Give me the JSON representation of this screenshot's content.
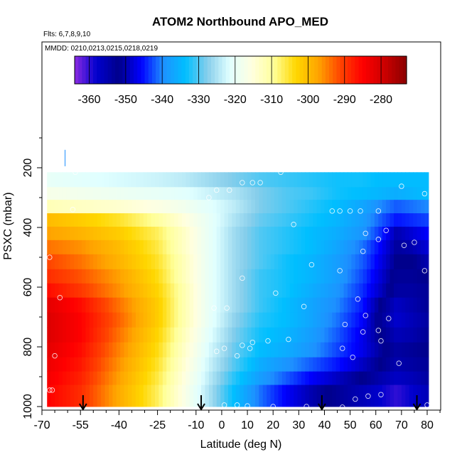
{
  "chart_data": {
    "type": "heatmap",
    "title": "ATOM2 Northbound APO_MED",
    "subtitle_flights": "Flts: 6,7,8,9,10",
    "subtitle_dates": "MMDD: 0210,0213,0215,0218,0219",
    "xlabel": "Latitude (deg N)",
    "ylabel": "PSXC (mbar)",
    "xlim": [
      -70,
      85
    ],
    "ylim": [
      1000,
      45
    ],
    "x_ticks": [
      -70,
      -55,
      -40,
      -25,
      -10,
      0,
      10,
      20,
      30,
      40,
      50,
      60,
      70,
      80
    ],
    "y_ticks": [
      200,
      400,
      600,
      800,
      1000
    ],
    "colorbar": {
      "ticks": [
        -360,
        -350,
        -340,
        -330,
        -320,
        -310,
        -300,
        -290,
        -280
      ],
      "range": [
        -364,
        -273
      ],
      "colors": [
        "#8a2be2",
        "#0000cd",
        "#00008b",
        "#0000ff",
        "#1e90ff",
        "#00bfff",
        "#87ceeb",
        "#e0ffff",
        "#ffffe0",
        "#ffff99",
        "#ffd700",
        "#ffa500",
        "#ff4500",
        "#ff0000",
        "#cc0000",
        "#8b0000"
      ]
    },
    "data_x_range": [
      -68,
      80
    ],
    "pressure_levels": [
      245,
      285,
      330,
      375,
      420,
      465,
      515,
      565,
      610,
      660,
      710,
      760,
      810,
      860,
      905,
      950
    ],
    "grid_lats": [
      -68,
      -55,
      -40,
      -25,
      -15,
      -5,
      5,
      15,
      25,
      35,
      45,
      55,
      62,
      68,
      74,
      80
    ],
    "values": [
      [
        -320,
        -321,
        -322,
        -323,
        -324,
        -326,
        -328,
        -330,
        -331,
        -332,
        -333,
        -333,
        -334,
        -334,
        -334,
        -334
      ],
      [
        -317,
        -318,
        -319,
        -320,
        -321,
        -323,
        -325,
        -328,
        -330,
        -331,
        -333,
        -334,
        -335,
        -336,
        -335,
        -334
      ],
      [
        -312,
        -313,
        -314,
        -316,
        -318,
        -321,
        -324,
        -328,
        -330,
        -332,
        -334,
        -337,
        -340,
        -342,
        -341,
        -340
      ],
      [
        -300,
        -302,
        -305,
        -310,
        -315,
        -320,
        -325,
        -329,
        -331,
        -333,
        -335,
        -338,
        -342,
        -345,
        -344,
        -343
      ],
      [
        -297,
        -299,
        -302,
        -307,
        -313,
        -320,
        -326,
        -330,
        -332,
        -334,
        -336,
        -339,
        -344,
        -350,
        -348,
        -346
      ],
      [
        -294,
        -296,
        -300,
        -306,
        -313,
        -320,
        -326,
        -330,
        -332,
        -334,
        -337,
        -341,
        -346,
        -351,
        -350,
        -348
      ],
      [
        -291,
        -294,
        -299,
        -305,
        -312,
        -320,
        -326,
        -330,
        -333,
        -335,
        -338,
        -342,
        -347,
        -352,
        -352,
        -350
      ],
      [
        -289,
        -292,
        -297,
        -304,
        -312,
        -320,
        -326,
        -331,
        -333,
        -335,
        -338,
        -343,
        -348,
        -353,
        -353,
        -352
      ],
      [
        -286,
        -290,
        -296,
        -303,
        -311,
        -320,
        -326,
        -331,
        -333,
        -336,
        -339,
        -344,
        -349,
        -354,
        -354,
        -353
      ],
      [
        -282,
        -286,
        -294,
        -302,
        -311,
        -320,
        -326,
        -331,
        -334,
        -337,
        -340,
        -345,
        -352,
        -357,
        -355,
        -353
      ],
      [
        -281,
        -285,
        -293,
        -302,
        -311,
        -320,
        -327,
        -332,
        -334,
        -337,
        -341,
        -346,
        -353,
        -358,
        -356,
        -354
      ],
      [
        -281,
        -285,
        -294,
        -303,
        -312,
        -321,
        -328,
        -333,
        -335,
        -338,
        -342,
        -347,
        -352,
        -356,
        -355,
        -353
      ],
      [
        -282,
        -286,
        -295,
        -304,
        -313,
        -322,
        -329,
        -334,
        -336,
        -339,
        -343,
        -347,
        -351,
        -354,
        -353,
        -352
      ],
      [
        -283,
        -287,
        -296,
        -305,
        -314,
        -323,
        -330,
        -336,
        -339,
        -342,
        -345,
        -349,
        -352,
        -355,
        -354,
        -353
      ],
      [
        -284,
        -288,
        -297,
        -306,
        -315,
        -324,
        -332,
        -338,
        -342,
        -346,
        -349,
        -352,
        -355,
        -357,
        -356,
        -354
      ],
      [
        -285,
        -289,
        -298,
        -307,
        -316,
        -325,
        -334,
        -341,
        -346,
        -350,
        -353,
        -356,
        -358,
        -360,
        -358,
        -356
      ]
    ],
    "points": [
      [
        -57,
        215
      ],
      [
        23,
        215
      ],
      [
        8,
        250
      ],
      [
        12,
        250
      ],
      [
        15,
        250
      ],
      [
        -2,
        275
      ],
      [
        3,
        275
      ],
      [
        -5,
        300
      ],
      [
        70,
        262
      ],
      [
        79,
        287
      ],
      [
        -58,
        340
      ],
      [
        43,
        345
      ],
      [
        46,
        345
      ],
      [
        50,
        345
      ],
      [
        54,
        345
      ],
      [
        61,
        345
      ],
      [
        28,
        390
      ],
      [
        64,
        410
      ],
      [
        56,
        420
      ],
      [
        61,
        440
      ],
      [
        75,
        450
      ],
      [
        71,
        460
      ],
      [
        -67,
        500
      ],
      [
        55,
        480
      ],
      [
        79,
        545
      ],
      [
        35,
        525
      ],
      [
        46,
        545
      ],
      [
        8,
        570
      ],
      [
        21,
        620
      ],
      [
        -63,
        635
      ],
      [
        32,
        665
      ],
      [
        -3,
        670
      ],
      [
        2,
        670
      ],
      [
        53,
        640
      ],
      [
        56,
        695
      ],
      [
        65,
        705
      ],
      [
        48,
        725
      ],
      [
        61,
        745
      ],
      [
        55,
        750
      ],
      [
        26,
        775
      ],
      [
        18,
        780
      ],
      [
        12,
        785
      ],
      [
        62,
        780
      ],
      [
        8,
        795
      ],
      [
        11,
        805
      ],
      [
        1,
        805
      ],
      [
        -2,
        815
      ],
      [
        47,
        805
      ],
      [
        6,
        830
      ],
      [
        -65,
        830
      ],
      [
        51,
        835
      ],
      [
        69,
        855
      ],
      [
        -67,
        945
      ],
      [
        -66,
        945
      ],
      [
        57,
        965
      ],
      [
        62,
        960
      ],
      [
        52,
        975
      ],
      [
        1,
        995
      ],
      [
        6,
        995
      ],
      [
        10,
        998
      ],
      [
        20,
        1000
      ],
      [
        33,
        1000
      ],
      [
        47,
        1002
      ],
      [
        80,
        995
      ]
    ],
    "arrows_lat": [
      -54,
      -8,
      39,
      76
    ]
  }
}
